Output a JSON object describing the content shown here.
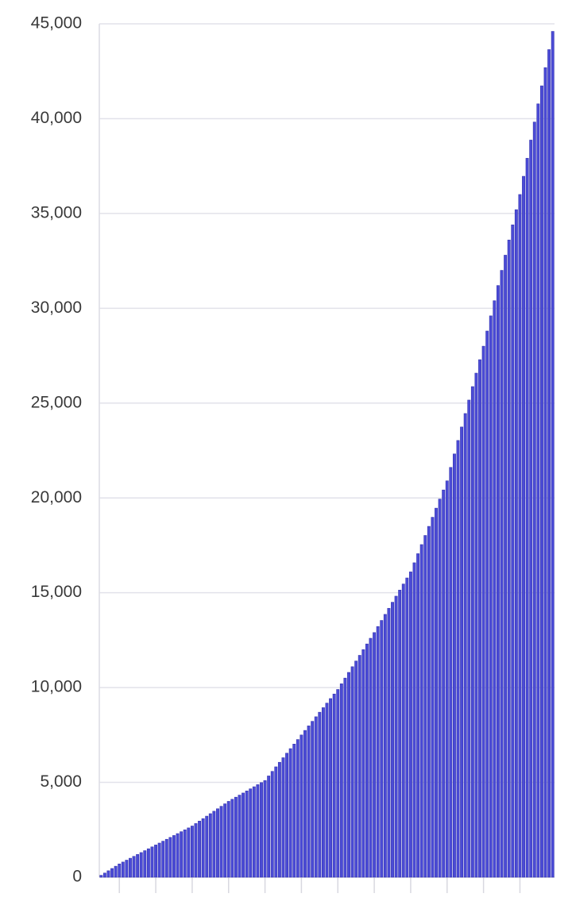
{
  "chart_data": {
    "type": "bar",
    "categories": [
      null,
      null,
      null,
      null,
      null,
      null,
      null,
      null,
      null,
      null,
      null,
      null,
      null,
      null,
      null,
      null,
      null,
      null,
      null,
      null,
      null,
      null,
      null,
      null,
      null,
      null,
      null,
      null,
      null,
      null,
      null,
      null,
      null,
      null,
      null,
      null,
      null,
      null,
      null,
      null,
      null,
      null,
      null,
      null,
      null,
      null,
      null,
      null,
      null,
      null,
      null,
      null,
      null,
      null,
      null,
      null,
      null,
      null,
      null,
      null,
      null,
      null,
      null,
      null,
      null,
      null,
      null,
      null,
      null,
      null,
      null,
      null,
      null,
      null,
      null,
      null,
      null,
      null,
      null,
      null,
      null,
      null,
      null,
      null,
      null,
      null,
      null,
      null,
      null,
      null,
      null,
      null,
      null,
      null,
      null,
      null,
      null,
      null,
      null,
      null,
      null,
      null,
      null,
      null,
      null,
      null,
      null,
      null,
      null,
      null,
      null,
      null,
      null,
      null,
      null,
      null,
      null,
      null,
      null,
      null,
      null,
      null,
      null,
      null,
      null
    ],
    "values": [
      100,
      220,
      340,
      460,
      580,
      700,
      800,
      900,
      1000,
      1100,
      1200,
      1300,
      1400,
      1500,
      1600,
      1700,
      1800,
      1900,
      2000,
      2100,
      2200,
      2300,
      2400,
      2500,
      2600,
      2700,
      2830,
      2960,
      3090,
      3220,
      3350,
      3480,
      3610,
      3740,
      3870,
      4000,
      4110,
      4220,
      4330,
      4440,
      4550,
      4660,
      4770,
      4880,
      4990,
      5100,
      5340,
      5580,
      5820,
      6060,
      6300,
      6540,
      6780,
      7020,
      7260,
      7500,
      7740,
      7980,
      8220,
      8460,
      8700,
      8940,
      9180,
      9420,
      9660,
      9900,
      10200,
      10500,
      10800,
      11100,
      11400,
      11700,
      12000,
      12300,
      12600,
      12900,
      13220,
      13540,
      13860,
      14180,
      14500,
      14820,
      15140,
      15460,
      15780,
      16100,
      16580,
      17060,
      17540,
      18020,
      18500,
      18980,
      19460,
      19940,
      20420,
      20900,
      21610,
      22320,
      23030,
      23740,
      24450,
      25160,
      25870,
      26580,
      27290,
      28000,
      28800,
      29600,
      30400,
      31200,
      32000,
      32800,
      33600,
      34400,
      35200,
      36000,
      36960,
      37910,
      38870,
      39820,
      40780,
      41730,
      42690,
      43640,
      44600
    ],
    "color": "#4b4bd6",
    "ylim": [
      0,
      45000
    ],
    "yticks": [
      0,
      {
        "value": 5000,
        "label": "5,000"
      },
      {
        "value": 10000,
        "label": "10,000"
      },
      {
        "value": 15000,
        "label": "15,000"
      },
      {
        "value": 20000,
        "label": "20,000"
      },
      {
        "value": 25000,
        "label": "25,000"
      },
      {
        "value": 30000,
        "label": "30,000"
      },
      {
        "value": 35000,
        "label": "35,000"
      },
      {
        "value": 40000,
        "label": "40,000"
      },
      {
        "value": 45000,
        "label": "45,000"
      }
    ],
    "grid": true
  }
}
